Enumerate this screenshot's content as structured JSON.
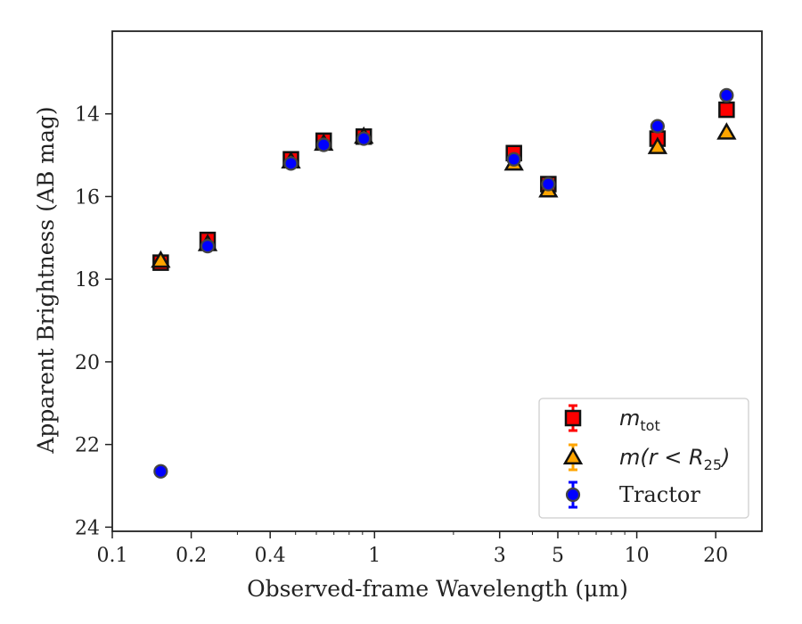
{
  "chart_data": {
    "type": "scatter",
    "xlabel": "Observed-frame Wavelength (μm)",
    "ylabel": "Apparent Brightness (AB mag)",
    "x_scale": "log",
    "xlim": [
      0.1,
      30
    ],
    "ylim": [
      24.1,
      12.0
    ],
    "x_ticks": [
      0.1,
      0.2,
      0.4,
      1,
      3,
      5,
      10,
      20
    ],
    "x_tick_labels": [
      "0.1",
      "0.2",
      "0.4",
      "1",
      "3",
      "5",
      "10",
      "20"
    ],
    "y_ticks": [
      14,
      16,
      18,
      20,
      22,
      24
    ],
    "y_tick_labels": [
      "14",
      "16",
      "18",
      "20",
      "22",
      "24"
    ],
    "grid": false,
    "legend_position": "lower-right",
    "legend": [
      {
        "name": "m_tot",
        "color": "#ff0000",
        "marker": "square"
      },
      {
        "name": "m(r < R_25)",
        "color": "#ffa500",
        "marker": "triangle"
      },
      {
        "name": "Tractor",
        "color": "#0000ff",
        "marker": "circle"
      }
    ],
    "series": [
      {
        "name": "m_tot",
        "marker": "square",
        "color": "#ff0000",
        "edge": "#111111",
        "x": [
          0.153,
          0.231,
          0.48,
          0.64,
          0.91,
          3.4,
          4.6,
          12.0,
          22.0
        ],
        "y": [
          17.6,
          17.05,
          15.1,
          14.65,
          14.55,
          14.95,
          15.7,
          14.6,
          13.9
        ]
      },
      {
        "name": "m(r < R_25)",
        "marker": "triangle",
        "color": "#ffa500",
        "edge": "#111111",
        "x": [
          0.153,
          0.231,
          0.48,
          0.64,
          0.91,
          3.4,
          4.6,
          12.0,
          22.0
        ],
        "y": [
          17.55,
          17.15,
          15.15,
          14.72,
          14.55,
          15.2,
          15.85,
          14.8,
          14.45
        ]
      },
      {
        "name": "Tractor",
        "marker": "circle",
        "color": "#0000ff",
        "edge": "#444444",
        "x": [
          0.153,
          0.231,
          0.48,
          0.64,
          0.91,
          3.4,
          4.6,
          12.0,
          22.0
        ],
        "y": [
          22.65,
          17.2,
          15.2,
          14.75,
          14.6,
          15.1,
          15.7,
          14.3,
          13.55
        ]
      }
    ]
  }
}
